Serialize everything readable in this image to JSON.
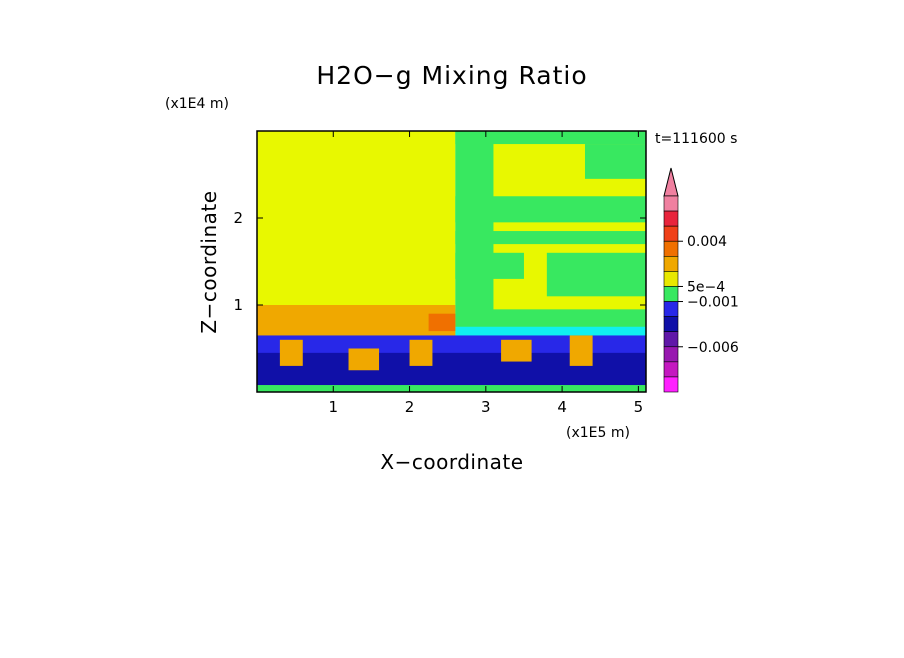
{
  "chart_data": {
    "type": "heatmap",
    "title": "H2O−g Mixing Ratio",
    "xlabel": "X−coordinate",
    "ylabel": "Z−coordinate",
    "x_unit": "(x1E5 m)",
    "y_unit": "(x1E4 m)",
    "time_label": "t=111600 s",
    "xlim": [
      0,
      5.1
    ],
    "ylim": [
      0,
      3.0
    ],
    "x_ticks": [
      {
        "value": 1,
        "label": "1"
      },
      {
        "value": 2,
        "label": "2"
      },
      {
        "value": 3,
        "label": "3"
      },
      {
        "value": 4,
        "label": "4"
      },
      {
        "value": 5,
        "label": "5"
      }
    ],
    "y_ticks": [
      {
        "value": 1,
        "label": "1"
      },
      {
        "value": 2,
        "label": "2"
      }
    ],
    "colorbar": {
      "colors": [
        "#f080a0",
        "#e8243c",
        "#f04018",
        "#f07000",
        "#f0a800",
        "#e8e800",
        "#38e860",
        "#2828e8",
        "#1010a8",
        "#6018a8",
        "#9818b0",
        "#c418c0",
        "#ff20ff"
      ],
      "labels": [
        {
          "slot": 3,
          "label": "0.004"
        },
        {
          "slot": 6,
          "label": "5e−4"
        },
        {
          "slot": 7,
          "label": "−0.001"
        },
        {
          "slot": 10,
          "label": "−0.006"
        }
      ]
    },
    "palette": {
      "dark_blue": "#1010a8",
      "blue": "#2828e8",
      "cyan": "#10f0f0",
      "green": "#38e860",
      "yellow": "#e8f800",
      "orange": "#f0a800",
      "dark_orange": "#f07000"
    },
    "regions": [
      {
        "x": [
          0,
          2.6
        ],
        "z": [
          0,
          3.0
        ],
        "color": "yellow"
      },
      {
        "x": [
          2.6,
          5.1
        ],
        "z": [
          0,
          3.0
        ],
        "color": "yellow"
      },
      {
        "x": [
          2.6,
          5.1
        ],
        "z": [
          2.85,
          3.0
        ],
        "color": "green"
      },
      {
        "x": [
          2.6,
          3.1
        ],
        "z": [
          0.8,
          3.0
        ],
        "color": "green"
      },
      {
        "x": [
          4.3,
          5.1
        ],
        "z": [
          2.45,
          2.85
        ],
        "color": "green"
      },
      {
        "x": [
          2.6,
          5.1
        ],
        "z": [
          1.95,
          2.25
        ],
        "color": "green"
      },
      {
        "x": [
          2.6,
          5.1
        ],
        "z": [
          1.7,
          1.85
        ],
        "color": "green"
      },
      {
        "x": [
          3.8,
          5.1
        ],
        "z": [
          1.1,
          1.6
        ],
        "color": "green"
      },
      {
        "x": [
          2.6,
          3.5
        ],
        "z": [
          1.3,
          1.6
        ],
        "color": "green"
      },
      {
        "x": [
          2.6,
          5.1
        ],
        "z": [
          0.6,
          0.95
        ],
        "color": "green"
      },
      {
        "x": [
          2.6,
          5.1
        ],
        "z": [
          0.55,
          0.75
        ],
        "color": "cyan"
      },
      {
        "x": [
          0,
          2.6
        ],
        "z": [
          0.55,
          1.0
        ],
        "color": "orange"
      },
      {
        "x": [
          2.25,
          2.6
        ],
        "z": [
          0.7,
          0.9
        ],
        "color": "dark_orange"
      },
      {
        "x": [
          0,
          5.1
        ],
        "z": [
          0.05,
          0.65
        ],
        "color": "blue"
      },
      {
        "x": [
          0,
          5.1
        ],
        "z": [
          0.05,
          0.45
        ],
        "color": "dark_blue"
      },
      {
        "x": [
          0.3,
          0.6
        ],
        "z": [
          0.3,
          0.6
        ],
        "color": "orange"
      },
      {
        "x": [
          1.2,
          1.6
        ],
        "z": [
          0.25,
          0.5
        ],
        "color": "orange"
      },
      {
        "x": [
          2.0,
          2.3
        ],
        "z": [
          0.3,
          0.6
        ],
        "color": "orange"
      },
      {
        "x": [
          3.2,
          3.6
        ],
        "z": [
          0.35,
          0.6
        ],
        "color": "orange"
      },
      {
        "x": [
          4.1,
          4.4
        ],
        "z": [
          0.3,
          0.65
        ],
        "color": "orange"
      },
      {
        "x": [
          0,
          5.1
        ],
        "z": [
          0,
          0.08
        ],
        "color": "green"
      }
    ]
  }
}
